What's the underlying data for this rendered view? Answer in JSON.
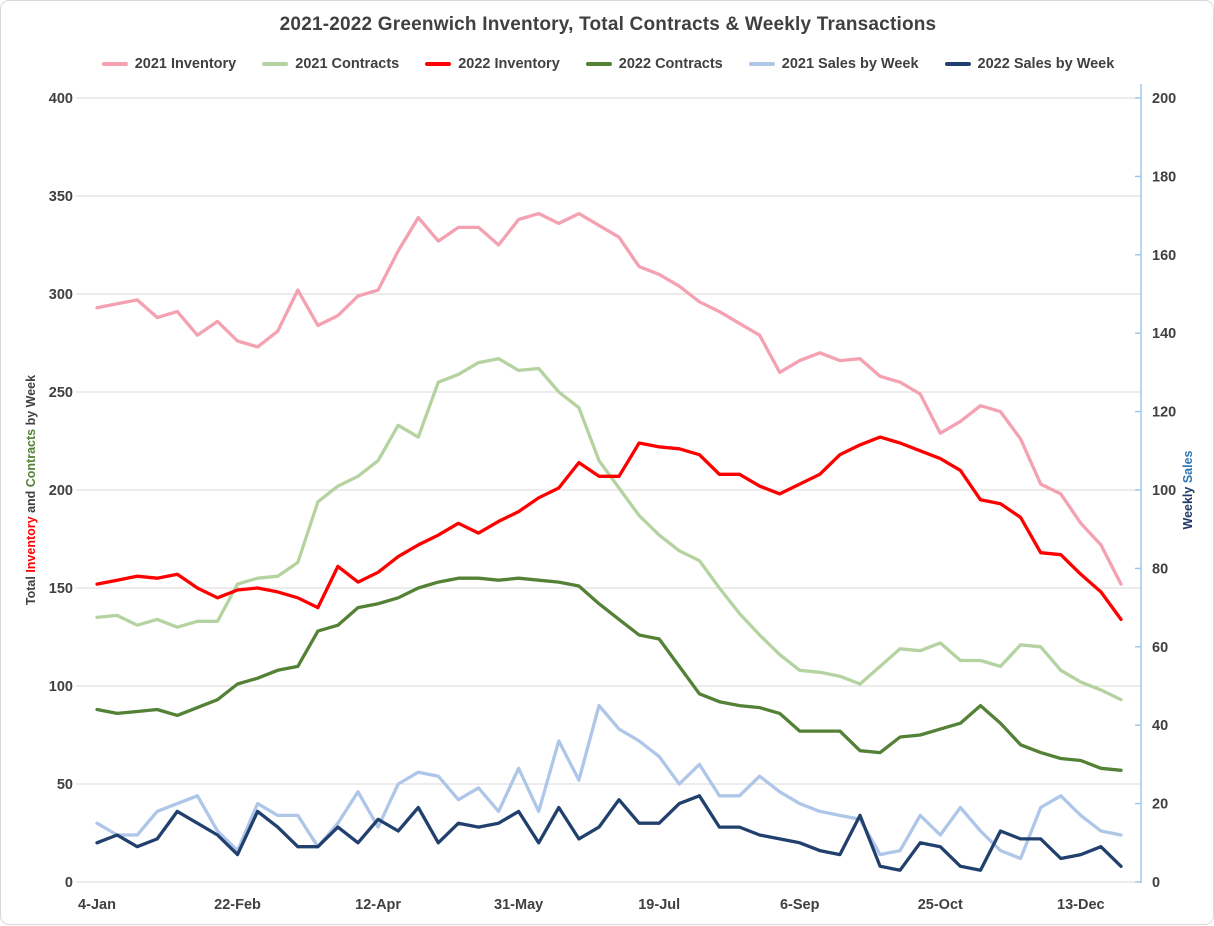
{
  "title": "2021-2022 Greenwich Inventory, Total Contracts & Weekly Transactions",
  "colors": {
    "text": "#404040",
    "gridline": "#d9d9d9",
    "right_axis_line": "#9dc3e6"
  },
  "chart_data": {
    "type": "line",
    "title": "2021-2022 Greenwich Inventory, Total Contracts & Weekly Transactions",
    "x_unit": "week",
    "weeks": 52,
    "grid": true,
    "legend_position": "top",
    "x_tick_labels": [
      "4-Jan",
      "22-Feb",
      "12-Apr",
      "31-May",
      "19-Jul",
      "6-Sep",
      "25-Oct",
      "13-Dec"
    ],
    "x_tick_weeks": [
      1,
      8,
      15,
      22,
      29,
      36,
      43,
      50
    ],
    "left_axis": {
      "title_parts": [
        {
          "text": "Total ",
          "color": "#404040"
        },
        {
          "text": "Inventory",
          "color": "#ff0000"
        },
        {
          "text": " and ",
          "color": "#404040"
        },
        {
          "text": "Contracts",
          "color": "#538135"
        },
        {
          "text": " by Week",
          "color": "#404040"
        }
      ],
      "min": 0,
      "max": 400,
      "step": 50,
      "tick_labels": [
        "0",
        "50",
        "100",
        "150",
        "200",
        "250",
        "300",
        "350",
        "400"
      ]
    },
    "right_axis": {
      "title_parts": [
        {
          "text": "Weekly ",
          "color": "#1f3864"
        },
        {
          "text": "Sales",
          "color": "#2e75b6"
        }
      ],
      "min": 0,
      "max": 200,
      "step": 20,
      "tick_labels": [
        "0",
        "20",
        "40",
        "60",
        "80",
        "100",
        "120",
        "140",
        "160",
        "180",
        "200"
      ]
    },
    "series": [
      {
        "name": "2021 Inventory",
        "color": "#f4a1b1",
        "axis": "left",
        "values": [
          293,
          295,
          297,
          288,
          291,
          279,
          286,
          276,
          273,
          281,
          302,
          284,
          289,
          299,
          302,
          322,
          339,
          327,
          334,
          334,
          325,
          338,
          341,
          336,
          341,
          335,
          329,
          314,
          310,
          304,
          296,
          291,
          285,
          279,
          260,
          266,
          270,
          266,
          267,
          258,
          255,
          249,
          229,
          235,
          243,
          240,
          226,
          203,
          198,
          183,
          172,
          152
        ]
      },
      {
        "name": "2021 Contracts",
        "color": "#b5d3a0",
        "axis": "left",
        "values": [
          135,
          136,
          131,
          134,
          130,
          133,
          133,
          152,
          155,
          156,
          163,
          194,
          202,
          207,
          215,
          233,
          227,
          255,
          259,
          265,
          267,
          261,
          262,
          250,
          242,
          215,
          201,
          187,
          177,
          169,
          164,
          150,
          137,
          126,
          116,
          108,
          107,
          105,
          101,
          110,
          119,
          118,
          122,
          113,
          113,
          110,
          121,
          120,
          108,
          102,
          98,
          93
        ]
      },
      {
        "name": "2022 Inventory",
        "color": "#fe0000",
        "axis": "left",
        "values": [
          152,
          154,
          156,
          155,
          157,
          150,
          145,
          149,
          150,
          148,
          145,
          140,
          161,
          153,
          158,
          166,
          172,
          177,
          183,
          178,
          184,
          189,
          196,
          201,
          214,
          207,
          207,
          224,
          222,
          221,
          218,
          208,
          208,
          202,
          198,
          203,
          208,
          218,
          223,
          227,
          224,
          220,
          216,
          210,
          195,
          193,
          186,
          168,
          167,
          157,
          148,
          134
        ]
      },
      {
        "name": "2022 Contracts",
        "color": "#538135",
        "axis": "left",
        "values": [
          88,
          86,
          87,
          88,
          85,
          89,
          93,
          101,
          104,
          108,
          110,
          128,
          131,
          140,
          142,
          145,
          150,
          153,
          155,
          155,
          154,
          155,
          154,
          153,
          151,
          142,
          134,
          126,
          124,
          110,
          96,
          92,
          90,
          89,
          86,
          77,
          77,
          77,
          67,
          66,
          74,
          75,
          78,
          81,
          90,
          81,
          70,
          66,
          63,
          62,
          58,
          57
        ]
      },
      {
        "name": "2021 Sales by Week",
        "color": "#aec6e8",
        "axis": "right",
        "values": [
          15,
          12,
          12,
          18,
          20,
          22,
          13,
          8,
          20,
          17,
          17,
          9,
          15,
          23,
          14,
          25,
          28,
          27,
          21,
          24,
          18,
          29,
          18,
          36,
          26,
          45,
          39,
          36,
          32,
          25,
          30,
          22,
          22,
          27,
          23,
          20,
          18,
          17,
          16,
          7,
          8,
          17,
          12,
          19,
          13,
          8,
          6,
          19,
          22,
          17,
          13,
          12
        ]
      },
      {
        "name": "2022 Sales by Week",
        "color": "#21406e",
        "axis": "right",
        "values": [
          10,
          12,
          9,
          11,
          18,
          15,
          12,
          7,
          18,
          14,
          9,
          9,
          14,
          10,
          16,
          13,
          19,
          10,
          15,
          14,
          15,
          18,
          10,
          19,
          11,
          14,
          21,
          15,
          15,
          20,
          22,
          14,
          14,
          12,
          11,
          10,
          8,
          7,
          17,
          4,
          3,
          10,
          9,
          4,
          3,
          13,
          11,
          11,
          6,
          7,
          9,
          4
        ]
      }
    ]
  }
}
